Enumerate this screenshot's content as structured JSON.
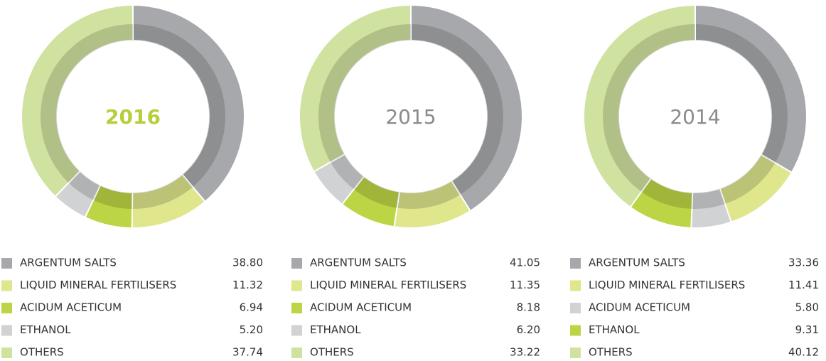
{
  "chart_data": [
    {
      "type": "donut",
      "title": "2016",
      "title_color": "#b5cf3b",
      "title_bold": true,
      "categories": [
        "ARGENTUM SALTS",
        "LIQUID MINERAL FERTILISERS",
        "ACIDUM ACETICUM",
        "ETHANOL",
        "OTHERS"
      ],
      "values": [
        38.8,
        11.32,
        6.94,
        5.2,
        37.74
      ],
      "value_labels": [
        "38.80",
        "11.32",
        "6.94",
        "5.20",
        "37.74"
      ],
      "colors": [
        "#a7a8ab",
        "#dfe68b",
        "#bcd544",
        "#d1d2d4",
        "#cfe29f"
      ]
    },
    {
      "type": "donut",
      "title": "2015",
      "title_color": "#8a8b8e",
      "title_bold": false,
      "categories": [
        "ARGENTUM SALTS",
        "LIQUID MINERAL FERTILISERS",
        "ACIDUM ACETICUM",
        "ETHANOL",
        "OTHERS"
      ],
      "values": [
        41.05,
        11.35,
        8.18,
        6.2,
        33.22
      ],
      "value_labels": [
        "41.05",
        "11.35",
        "8.18",
        "6.20",
        "33.22"
      ],
      "colors": [
        "#a7a8ab",
        "#dfe68b",
        "#bcd544",
        "#d1d2d4",
        "#cfe29f"
      ]
    },
    {
      "type": "donut",
      "title": "2014",
      "title_color": "#8a8b8e",
      "title_bold": false,
      "categories": [
        "ARGENTUM SALTS",
        "LIQUID MINERAL FERTILISERS",
        "ACIDUM ACETICUM",
        "ETHANOL",
        "OTHERS"
      ],
      "values": [
        33.36,
        11.41,
        5.8,
        9.31,
        40.12
      ],
      "value_labels": [
        "33.36",
        "11.41",
        "5.80",
        "9.31",
        "40.12"
      ],
      "colors": [
        "#a7a8ab",
        "#dfe68b",
        "#d1d2d4",
        "#bcd544",
        "#cfe29f"
      ]
    }
  ]
}
